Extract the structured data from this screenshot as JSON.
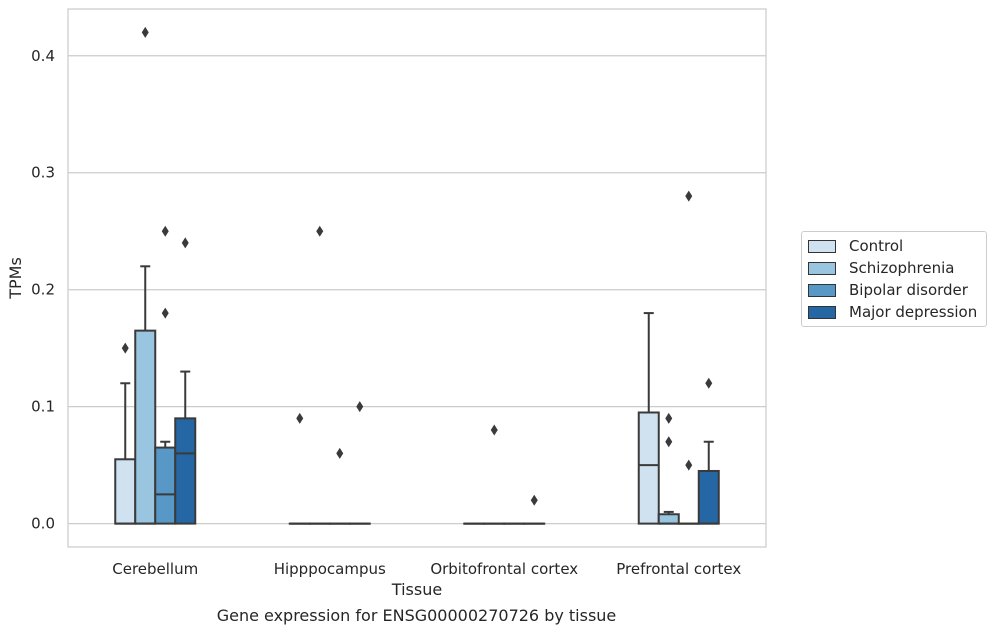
{
  "caption": "Gene expression for ENSG00000270726 by tissue",
  "chart_data": {
    "type": "box",
    "xlabel": "Tissue",
    "ylabel": "TPMs",
    "ylim": [
      -0.02,
      0.44
    ],
    "yticks": [
      0.0,
      0.1,
      0.2,
      0.3,
      0.4
    ],
    "ytick_labels": [
      "0.0",
      "0.1",
      "0.2",
      "0.3",
      "0.4"
    ],
    "grid": "horizontal",
    "legend_placement": "right",
    "categories": [
      "Cerebellum",
      "Hipppocampus",
      "Orbitofrontal cortex",
      "Prefrontal cortex"
    ],
    "series": [
      {
        "name": "Control",
        "color": "#d0e1f0",
        "boxes": [
          {
            "q1": 0.0,
            "median": 0.0,
            "q3": 0.055,
            "whisker_low": 0.0,
            "whisker_high": 0.12,
            "outliers": [
              0.15
            ]
          },
          {
            "q1": 0.0,
            "median": 0.0,
            "q3": 0.0,
            "whisker_low": 0.0,
            "whisker_high": 0.0,
            "outliers": [
              0.09
            ]
          },
          {
            "q1": 0.0,
            "median": 0.0,
            "q3": 0.0,
            "whisker_low": 0.0,
            "whisker_high": 0.0,
            "outliers": []
          },
          {
            "q1": 0.0,
            "median": 0.05,
            "q3": 0.095,
            "whisker_low": 0.0,
            "whisker_high": 0.18,
            "outliers": []
          }
        ]
      },
      {
        "name": "Schizophrenia",
        "color": "#9ac5e0",
        "boxes": [
          {
            "q1": 0.0,
            "median": 0.0,
            "q3": 0.165,
            "whisker_low": 0.0,
            "whisker_high": 0.22,
            "outliers": [
              0.42
            ]
          },
          {
            "q1": 0.0,
            "median": 0.0,
            "q3": 0.0,
            "whisker_low": 0.0,
            "whisker_high": 0.0,
            "outliers": [
              0.25
            ]
          },
          {
            "q1": 0.0,
            "median": 0.0,
            "q3": 0.0,
            "whisker_low": 0.0,
            "whisker_high": 0.0,
            "outliers": [
              0.08
            ]
          },
          {
            "q1": 0.0,
            "median": 0.0,
            "q3": 0.008,
            "whisker_low": 0.0,
            "whisker_high": 0.01,
            "outliers": [
              0.09,
              0.07
            ]
          }
        ]
      },
      {
        "name": "Bipolar disorder",
        "color": "#5898c6",
        "boxes": [
          {
            "q1": 0.0,
            "median": 0.025,
            "q3": 0.065,
            "whisker_low": 0.0,
            "whisker_high": 0.07,
            "outliers": [
              0.25,
              0.18
            ]
          },
          {
            "q1": 0.0,
            "median": 0.0,
            "q3": 0.0,
            "whisker_low": 0.0,
            "whisker_high": 0.0,
            "outliers": [
              0.06
            ]
          },
          {
            "q1": 0.0,
            "median": 0.0,
            "q3": 0.0,
            "whisker_low": 0.0,
            "whisker_high": 0.0,
            "outliers": []
          },
          {
            "q1": 0.0,
            "median": 0.0,
            "q3": 0.0,
            "whisker_low": 0.0,
            "whisker_high": 0.0,
            "outliers": [
              0.28,
              0.05
            ]
          }
        ]
      },
      {
        "name": "Major depression",
        "color": "#2566a5",
        "boxes": [
          {
            "q1": 0.0,
            "median": 0.06,
            "q3": 0.09,
            "whisker_low": 0.0,
            "whisker_high": 0.13,
            "outliers": [
              0.24
            ]
          },
          {
            "q1": 0.0,
            "median": 0.0,
            "q3": 0.0,
            "whisker_low": 0.0,
            "whisker_high": 0.0,
            "outliers": [
              0.1
            ]
          },
          {
            "q1": 0.0,
            "median": 0.0,
            "q3": 0.0,
            "whisker_low": 0.0,
            "whisker_high": 0.0,
            "outliers": [
              0.02
            ]
          },
          {
            "q1": 0.0,
            "median": 0.0,
            "q3": 0.045,
            "whisker_low": 0.0,
            "whisker_high": 0.07,
            "outliers": [
              0.12
            ]
          }
        ]
      }
    ]
  }
}
